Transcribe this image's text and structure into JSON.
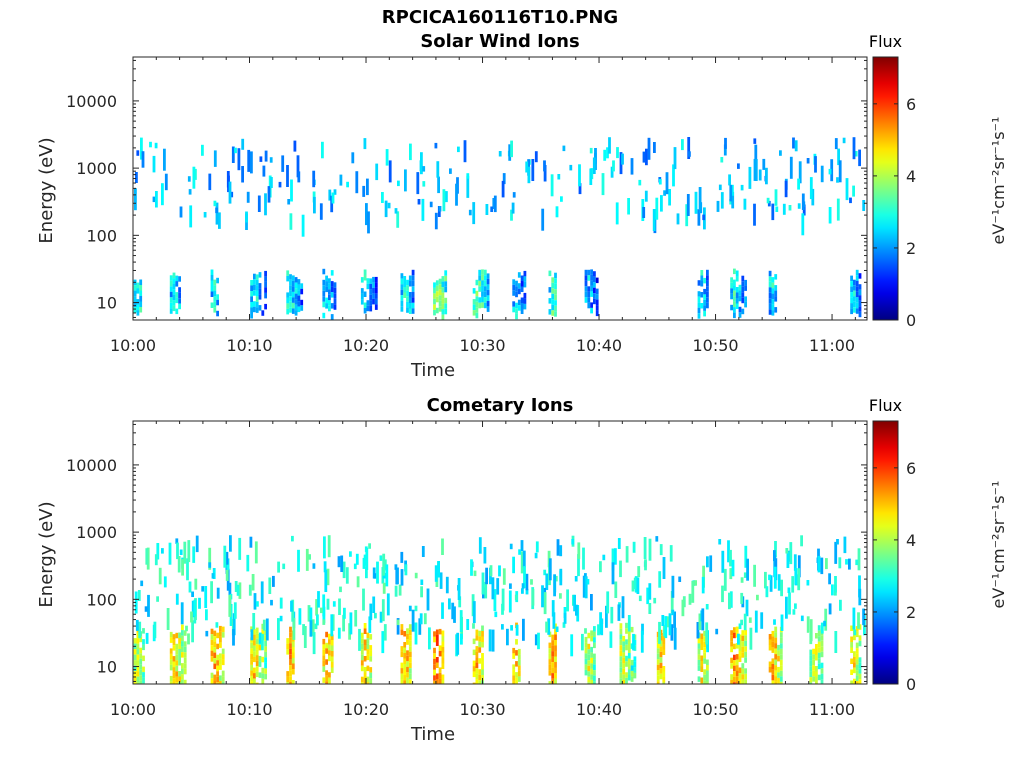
{
  "figure": {
    "title": "RPCICA160116T10.PNG"
  },
  "chart_data": [
    {
      "type": "heatmap",
      "title": "Solar Wind Ions",
      "xlabel": "Time",
      "ylabel": "Energy (eV)",
      "x_ticks": [
        "10:00",
        "10:10",
        "10:20",
        "10:30",
        "10:40",
        "10:50",
        "11:00"
      ],
      "xlim_minutes": [
        0,
        63
      ],
      "y_scale": "log",
      "y_ticks": [
        "10",
        "100",
        "1000",
        "10000"
      ],
      "ylim": [
        5.5,
        45000
      ],
      "colorbar": {
        "label": "Flux",
        "unit": "eV⁻¹cm⁻²sr⁻¹s⁻¹",
        "range": [
          0,
          7.3
        ],
        "ticks": [
          "0",
          "2",
          "4",
          "6"
        ],
        "colormap": "jet"
      },
      "low_energy_band": {
        "energy_range": [
          9,
          32
        ],
        "times_minutes": [
          0.3,
          3.4,
          6.9,
          10.3,
          13.4,
          16.5,
          19.8,
          23.2,
          26.0,
          29.4,
          32.8,
          35.9,
          39.0,
          48.7,
          51.5,
          54.8,
          61.8
        ],
        "intensity": [
          3.8,
          3.5,
          3.4,
          3.6,
          3.7,
          3.4,
          3.5,
          3.6,
          4.6,
          4.2,
          3.2,
          3.8,
          3.0,
          3.3,
          3.6,
          3.4,
          3.2
        ]
      },
      "high_energy_band": {
        "energy_range": [
          200,
          3000
        ],
        "typical_flux": [
          1.5,
          3.0
        ]
      }
    },
    {
      "type": "heatmap",
      "title": "Cometary Ions",
      "xlabel": "Time",
      "ylabel": "Energy (eV)",
      "x_ticks": [
        "10:00",
        "10:10",
        "10:20",
        "10:30",
        "10:40",
        "10:50",
        "11:00"
      ],
      "xlim_minutes": [
        0,
        63
      ],
      "y_scale": "log",
      "y_ticks": [
        "10",
        "100",
        "1000",
        "10000"
      ],
      "ylim": [
        5.5,
        45000
      ],
      "colorbar": {
        "label": "Flux",
        "unit": "eV⁻¹cm⁻²sr⁻¹s⁻¹",
        "range": [
          0,
          7.3
        ],
        "ticks": [
          "0",
          "2",
          "4",
          "6"
        ],
        "colormap": "jet"
      },
      "low_energy_band": {
        "energy_range": [
          6,
          45
        ],
        "times_minutes": [
          0.3,
          3.4,
          6.9,
          10.3,
          13.4,
          16.5,
          19.8,
          23.2,
          26.0,
          29.4,
          32.8,
          35.9,
          39.0,
          42.0,
          45.2,
          48.7,
          51.5,
          54.8,
          58.3,
          61.8
        ],
        "intensity": [
          5.0,
          5.6,
          5.8,
          5.5,
          5.9,
          5.7,
          5.6,
          5.8,
          6.2,
          5.7,
          5.6,
          5.9,
          5.0,
          5.0,
          5.5,
          5.2,
          6.1,
          5.7,
          5.0,
          5.2
        ]
      },
      "high_energy_band": {
        "energy_range": [
          30,
          900
        ],
        "typical_flux": [
          2.0,
          3.5
        ]
      }
    }
  ]
}
